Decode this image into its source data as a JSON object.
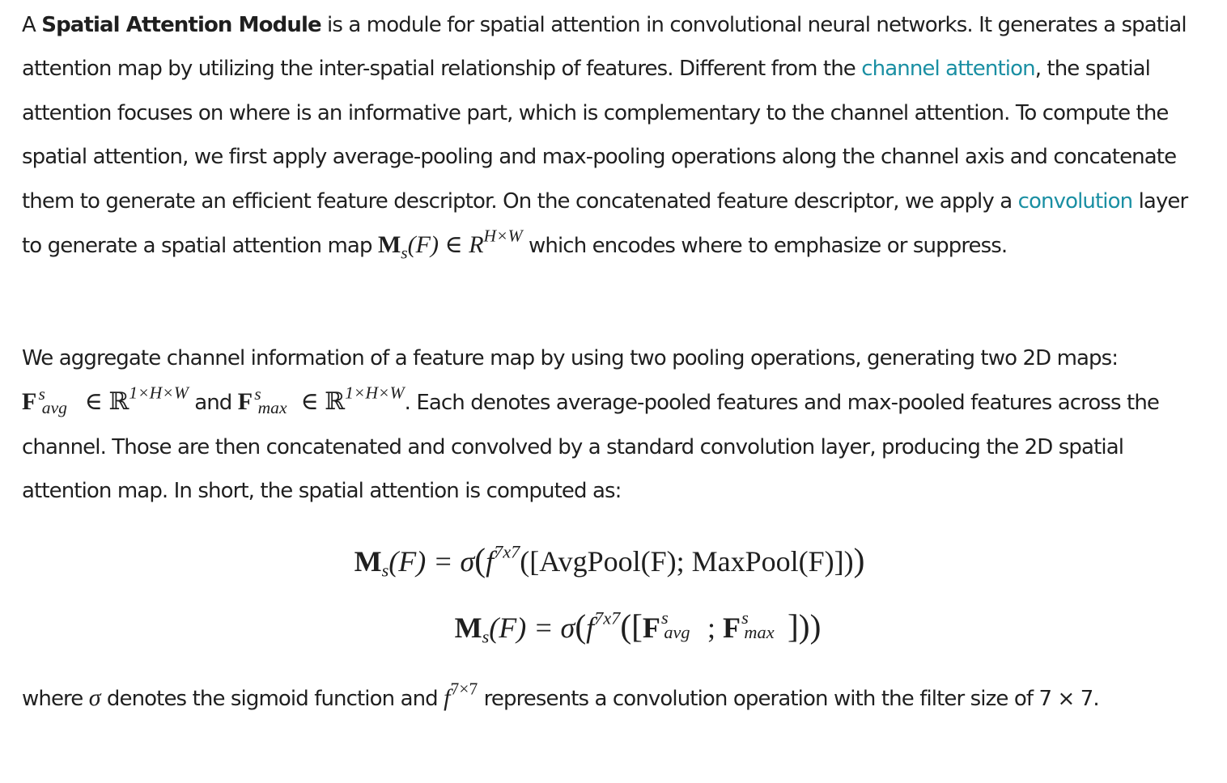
{
  "colors": {
    "text": "#1f1f1f",
    "link": "#1a8fa3",
    "background": "#ffffff"
  },
  "paragraph1": {
    "intro": "A ",
    "term": "Spatial Attention Module",
    "text1": " is a module for spatial attention in convolutional neural networks. It generates a spatial attention map by utilizing the inter-spatial relationship of features. Different from the ",
    "link_channel_attention": "channel attention",
    "text2": ", the spatial attention focuses on where is an informative part, which is complementary to the channel attention. To compute the spatial attention, we first apply average-pooling and max-pooling operations along the channel axis and concatenate them to generate an efficient feature descriptor. On the concatenated feature descriptor, we apply a ",
    "link_convolution": "convolution",
    "text3": " layer to generate a spatial attention map ",
    "math_ms": "M",
    "math_sub_s": "s",
    "math_arg": "(F) ∈ ",
    "math_set": "R",
    "math_dims": "H×W",
    "text4": " which encodes where to emphasize or suppress."
  },
  "paragraph2": {
    "text1": "We aggregate channel information of a feature map by using two pooling operations, generating two 2D maps: ",
    "f_avg_base": "F",
    "f_avg_sup": "s",
    "f_avg_sub": "avg",
    "in1": " ∈ ℝ",
    "dims1": "1×H×W",
    "and": " and ",
    "f_max_base": "F",
    "f_max_sup": "s",
    "f_max_sub": "max",
    "in2": " ∈ ℝ",
    "dims2": "1×H×W",
    "text2": ". Each denotes average-pooled features and max-pooled features across the channel. Those are then concatenated and convolved by a standard convolution layer, producing the 2D spatial attention map. In short, the spatial attention is computed as:"
  },
  "equation1": {
    "lhs": "M",
    "lhs_sub": "s",
    "lhs_arg": "(F) = σ",
    "open": "(",
    "f": "f",
    "f_sup": "7x7",
    "body": "([AvgPool(F); MaxPool(F)])",
    "close": ")"
  },
  "equation2": {
    "lhs": "M",
    "lhs_sub": "s",
    "lhs_arg": "(F) = σ",
    "open": "(",
    "f": "f",
    "f_sup": "7x7",
    "open2": "([",
    "fa": "F",
    "fa_sup": "s",
    "fa_sub": "avg",
    "sep": "; ",
    "fm": "F",
    "fm_sup": "s",
    "fm_sub": "max",
    "close2": "]))"
  },
  "paragraph3": {
    "text1": "where ",
    "sigma": "σ",
    "text2": " denotes the sigmoid function and ",
    "f": "f",
    "f_sup": "7×7",
    "text3": " represents a convolution operation with the filter size of 7 × 7."
  }
}
